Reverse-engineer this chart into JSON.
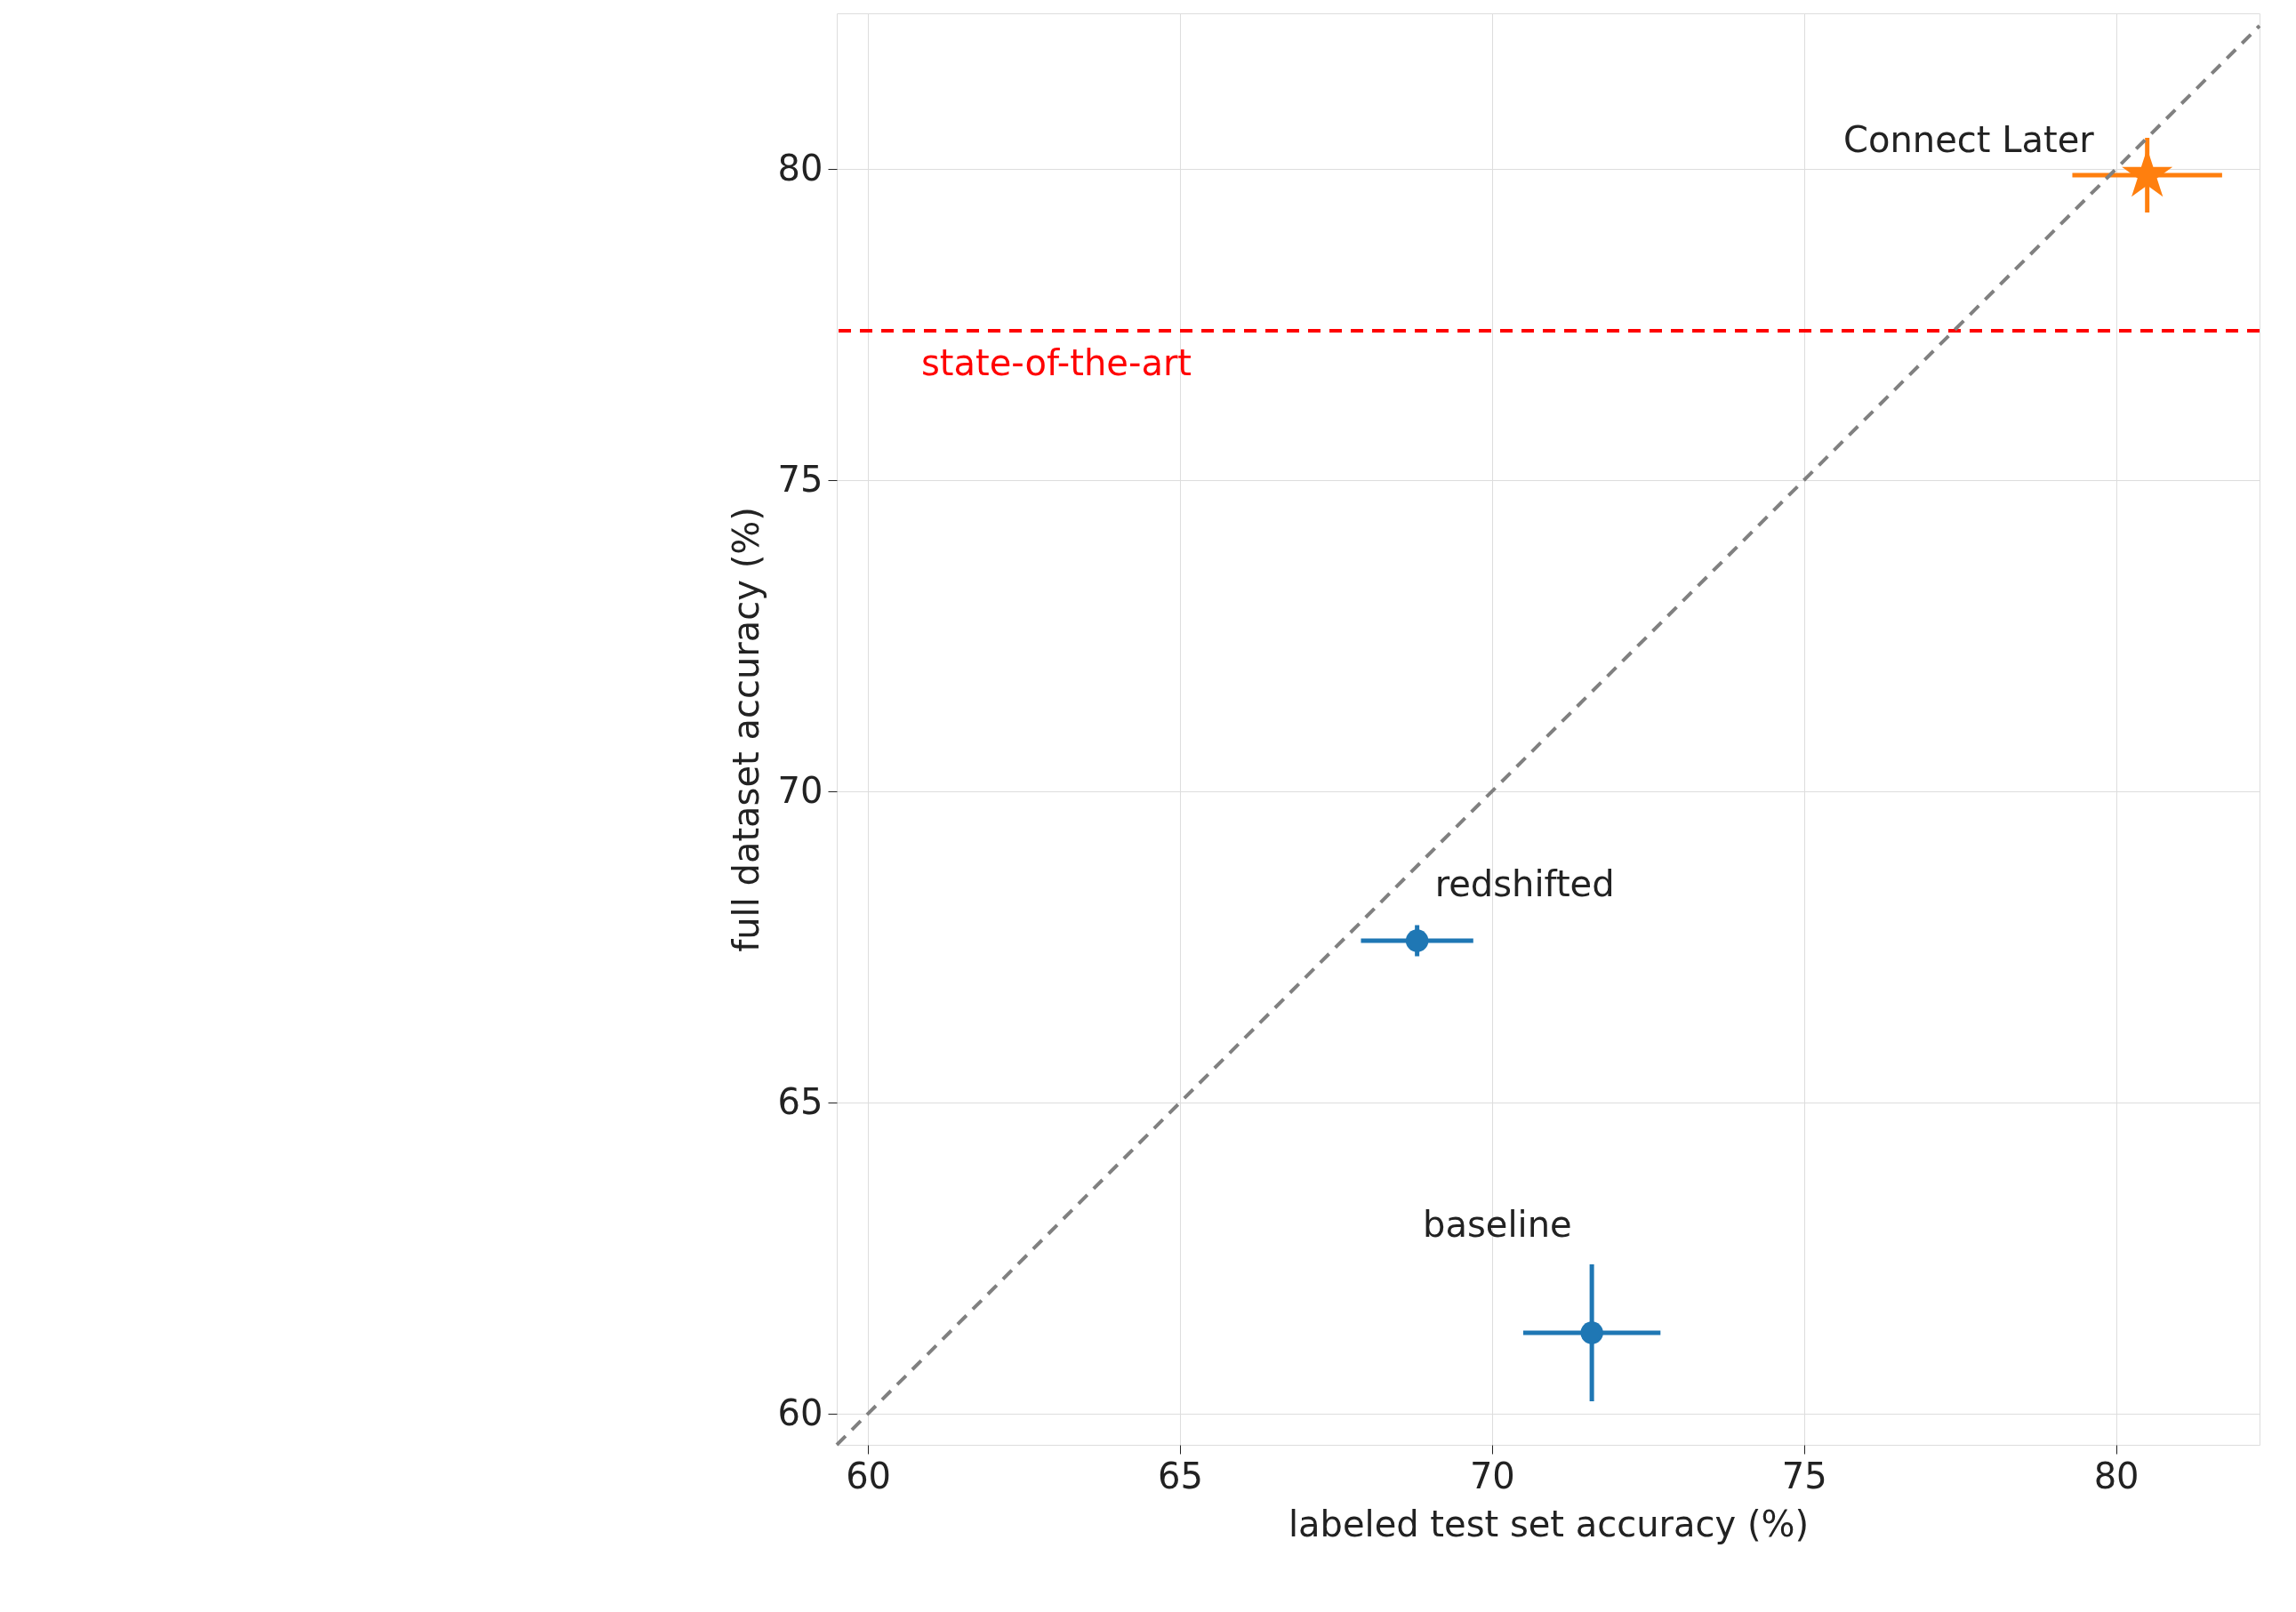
{
  "chart_data": {
    "type": "scatter",
    "xlabel": "labeled test set accuracy (%)",
    "ylabel": "full dataset accuracy (%)",
    "xlim": [
      59.5,
      82.3
    ],
    "ylim": [
      59.5,
      82.5
    ],
    "xticks": [
      60,
      65,
      70,
      75,
      80
    ],
    "yticks": [
      60,
      65,
      70,
      75,
      80
    ],
    "grid": true,
    "series": [
      {
        "name": "baseline",
        "color": "#1f77b4",
        "marker": "circle",
        "x": [
          71.6
        ],
        "values": [
          61.3
        ],
        "xerrors": [
          1.1
        ],
        "errors": [
          1.1
        ]
      },
      {
        "name": "redshifted",
        "color": "#1f77b4",
        "marker": "circle",
        "x": [
          68.8
        ],
        "values": [
          67.6
        ],
        "xerrors": [
          0.9
        ],
        "errors": [
          0.25
        ]
      },
      {
        "name": "Connect Later",
        "color": "#ff7f0e",
        "marker": "star",
        "x": [
          80.5
        ],
        "values": [
          79.9
        ],
        "xerrors": [
          1.2
        ],
        "errors": [
          0.6
        ]
      },
      {
        "type": "line",
        "color": "#808080",
        "line_style": "dashed",
        "x": [
          59.5,
          82.3
        ],
        "values": [
          59.5,
          82.3
        ]
      }
    ],
    "ref_lines": [
      {
        "axis": "y",
        "value": 77.4,
        "label": "state-of-the-art",
        "color": "#ff0000",
        "line_style": "dashed"
      }
    ]
  }
}
